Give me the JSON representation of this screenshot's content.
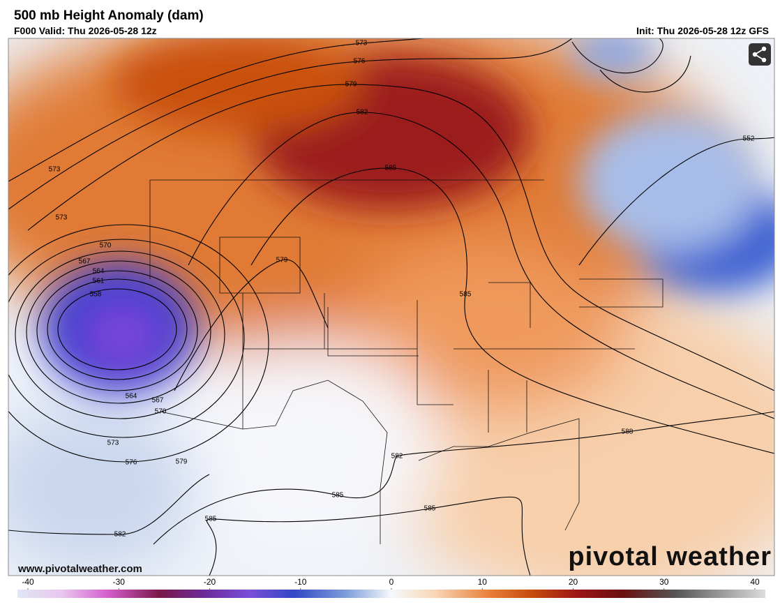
{
  "header": {
    "title": "500 mb Height Anomaly (dam)",
    "valid": "F000 Valid: Thu 2026-05-28 12z",
    "init": "Init: Thu 2026-05-28 12z GFS"
  },
  "map": {
    "contour_labels": [
      "573",
      "576",
      "579",
      "582",
      "585",
      "573",
      "573",
      "570",
      "567",
      "564",
      "561",
      "558",
      "579",
      "585",
      "564",
      "567",
      "570",
      "573",
      "576",
      "579",
      "582",
      "585",
      "585",
      "585",
      "582",
      "588",
      "552"
    ]
  },
  "watermark": {
    "site": "www.pivotalweather.com",
    "logo": "pivotal weather"
  },
  "colorbar": {
    "ticks": [
      -40,
      -30,
      -20,
      -10,
      0,
      10,
      20,
      30,
      40
    ]
  }
}
